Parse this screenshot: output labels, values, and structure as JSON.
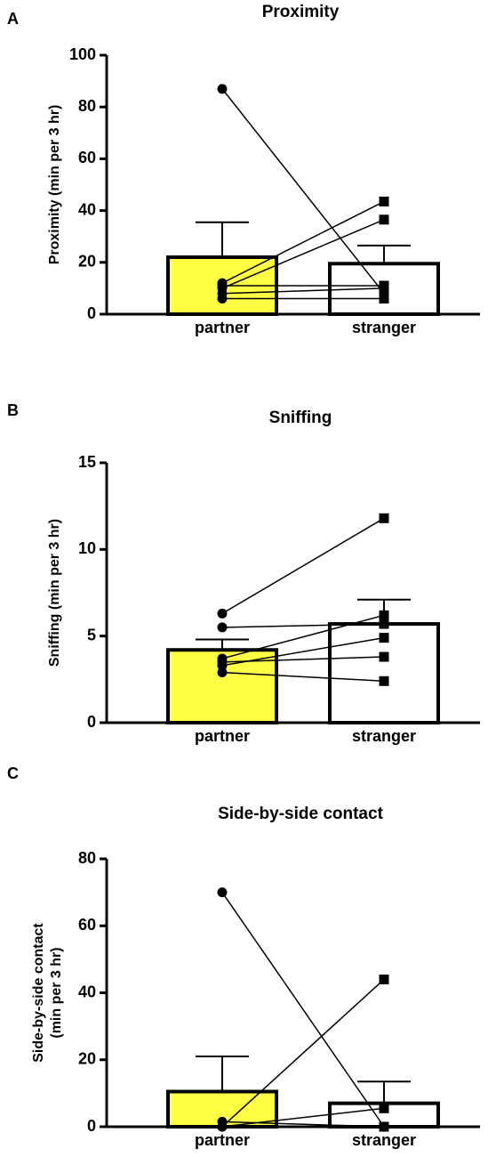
{
  "chart_data": [
    {
      "type": "bar",
      "panel": "A",
      "title": "Proximity",
      "y_label": "Proximity (min per 3 hr)",
      "categories": [
        "partner",
        "stranger"
      ],
      "values": [
        22,
        19.5
      ],
      "errors": [
        13.5,
        7
      ],
      "colors": [
        "#ffff44",
        "#ffffff"
      ],
      "markers": [
        "circle",
        "square"
      ],
      "pairs": [
        [
          87,
          8
        ],
        [
          12,
          43.5
        ],
        [
          10,
          36.5
        ],
        [
          11,
          11
        ],
        [
          6,
          6
        ],
        [
          8,
          10
        ]
      ],
      "ylim": [
        0,
        100
      ],
      "yticks": [
        0,
        20,
        40,
        60,
        80,
        100
      ]
    },
    {
      "type": "bar",
      "panel": "B",
      "title": "Sniffing",
      "y_label": "Sniffing (min per 3 hr)",
      "categories": [
        "partner",
        "stranger"
      ],
      "values": [
        4.2,
        5.7
      ],
      "errors": [
        0.6,
        1.4
      ],
      "colors": [
        "#ffff44",
        "#ffffff"
      ],
      "markers": [
        "circle",
        "square"
      ],
      "pairs": [
        [
          6.3,
          11.8
        ],
        [
          5.5,
          5.7
        ],
        [
          3.7,
          6.2
        ],
        [
          3.3,
          4.9
        ],
        [
          3.5,
          3.8
        ],
        [
          2.9,
          2.4
        ]
      ],
      "ylim": [
        0,
        15
      ],
      "yticks": [
        0,
        5,
        10,
        15
      ]
    },
    {
      "type": "bar",
      "panel": "C",
      "title": "Side-by-side contact",
      "y_label": [
        "Side-by-side contact",
        "(min per 3 hr)"
      ],
      "categories": [
        "partner",
        "stranger"
      ],
      "values": [
        10.5,
        7
      ],
      "errors": [
        10.5,
        6.5
      ],
      "colors": [
        "#ffff44",
        "#ffffff"
      ],
      "markers": [
        "circle",
        "square"
      ],
      "pairs": [
        [
          70,
          0
        ],
        [
          0,
          44
        ],
        [
          0,
          5.5
        ],
        [
          1.5,
          0
        ],
        [
          0,
          0
        ],
        [
          0,
          0
        ],
        [
          0,
          0
        ]
      ],
      "ylim": [
        0,
        80
      ],
      "yticks": [
        0,
        20,
        40,
        60,
        80
      ]
    }
  ]
}
